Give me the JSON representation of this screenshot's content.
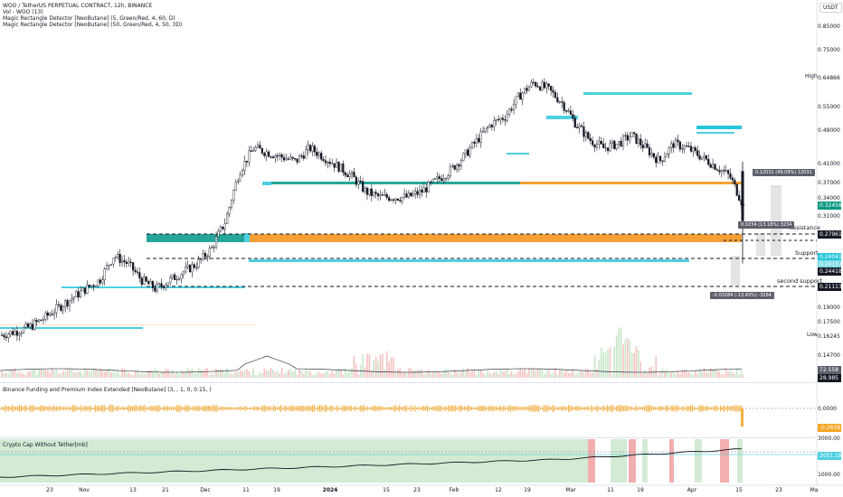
{
  "header": {
    "symbol_line": "WOO / TetherUS PERPETUAL CONTRACT, 12h, BINANCE",
    "vol_line": "Vol - WOO (13)",
    "indicator1": "Magic Rectangle Detector [NeoButane] (5, Green/Red, 4, 60, D)",
    "indicator2": "Magic Rectangle Detector [NeoButane] (50, Green/Red, 4, 50, 3D)"
  },
  "currency_button": "USDT",
  "price_axis": [
    "0.85000",
    "0.75000",
    "0.64866",
    "0.55000",
    "0.49000",
    "0.41000",
    "0.37000",
    "0.34000",
    "0.31000",
    "0.19000",
    "0.17500",
    "0.16245",
    "0.14700"
  ],
  "high_label": "High",
  "low_label": "Low",
  "price_tags": [
    {
      "text": "0.32458",
      "color": "#089981"
    },
    {
      "text": "0.27961",
      "color": "#131722"
    },
    {
      "text": "0.24041",
      "color": "#26c6da"
    },
    {
      "text": "0.2413.0h",
      "color": "#7fdbe8"
    },
    {
      "text": "0.24418",
      "color": "#131722"
    },
    {
      "text": "0.21113",
      "color": "#131722"
    }
  ],
  "levels": {
    "resistance": "Resistance",
    "support": "Support",
    "second_support": "second support"
  },
  "measure_boxes": [
    "0.12031 (49.09%) 12031",
    "0.0234 (13.18%) 3234",
    "-0.03284 (-13.45%) -3284"
  ],
  "volume_tags": [
    {
      "text": "72.558 M",
      "color": "#5d606b"
    },
    {
      "text": "28.985 M",
      "color": "#131722"
    }
  ],
  "funding_pane": {
    "title": "Binance Funding and Premium Index Extended [NeoButane] (3, , 1, 0, 0.15, )",
    "axis": [
      "0.0000"
    ],
    "tag": "-0.2838"
  },
  "cap_pane": {
    "title": "Crypto Cap Without Tether[mb]",
    "axis": [
      "3000.00",
      "1000.00"
    ],
    "tag": "2051.18"
  },
  "time_axis": [
    {
      "text": "23",
      "bold": false
    },
    {
      "text": "Nov",
      "bold": false
    },
    {
      "text": "13",
      "bold": false
    },
    {
      "text": "21",
      "bold": false
    },
    {
      "text": "Dec",
      "bold": false
    },
    {
      "text": "11",
      "bold": false
    },
    {
      "text": "19",
      "bold": false
    },
    {
      "text": "2024",
      "bold": true
    },
    {
      "text": "15",
      "bold": false
    },
    {
      "text": "23",
      "bold": false
    },
    {
      "text": "Feb",
      "bold": false
    },
    {
      "text": "12",
      "bold": false
    },
    {
      "text": "19",
      "bold": false
    },
    {
      "text": "Mar",
      "bold": false
    },
    {
      "text": "11",
      "bold": false
    },
    {
      "text": "19",
      "bold": false
    },
    {
      "text": "Apr",
      "bold": false
    },
    {
      "text": "15",
      "bold": false
    },
    {
      "text": "23",
      "bold": false
    },
    {
      "text": "Ma",
      "bold": false
    }
  ],
  "colors": {
    "up": "#131722",
    "down": "#ffffff",
    "green_zone": "#26a69a",
    "orange_zone": "#f7a035",
    "cyan_zone": "#4dd0e1",
    "funding": "#f5b041",
    "cap_green": "#c8e6c9",
    "cap_red": "#ef9a9a"
  },
  "chart_data": {
    "type": "candlestick",
    "price_range": [
      0.147,
      0.85
    ],
    "approx_close_path": [
      0.165,
      0.168,
      0.172,
      0.18,
      0.19,
      0.2,
      0.21,
      0.22,
      0.25,
      0.24,
      0.22,
      0.21,
      0.22,
      0.23,
      0.24,
      0.26,
      0.3,
      0.39,
      0.44,
      0.43,
      0.42,
      0.41,
      0.44,
      0.42,
      0.4,
      0.38,
      0.35,
      0.34,
      0.34,
      0.34,
      0.35,
      0.37,
      0.39,
      0.42,
      0.46,
      0.5,
      0.52,
      0.58,
      0.62,
      0.6,
      0.56,
      0.5,
      0.46,
      0.44,
      0.45,
      0.47,
      0.44,
      0.41,
      0.45,
      0.44,
      0.42,
      0.4,
      0.38,
      0.32458
    ]
  }
}
